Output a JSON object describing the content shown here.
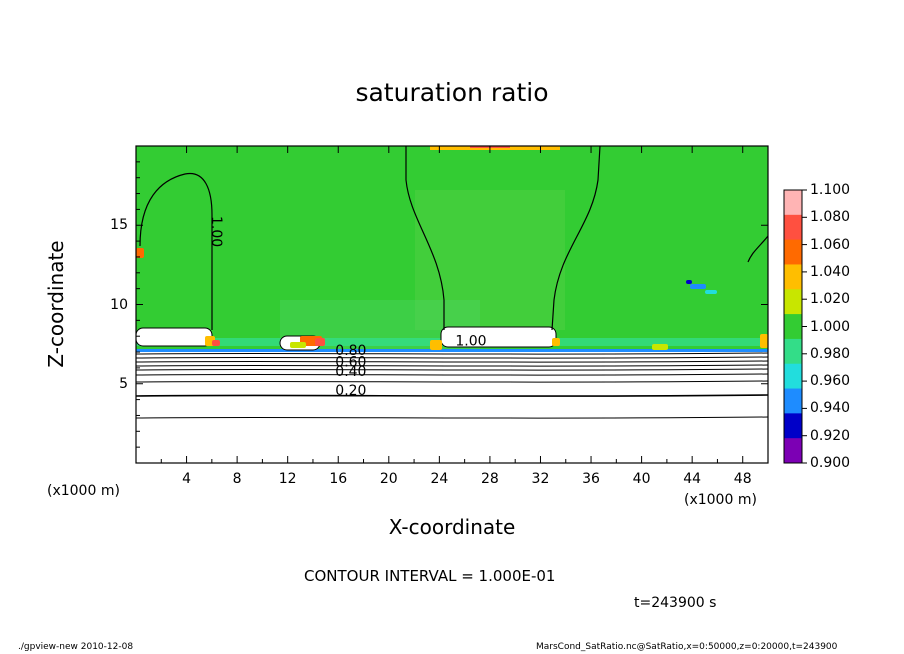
{
  "chart_data": {
    "type": "heatmap",
    "title": "saturation ratio",
    "xlabel": "X-coordinate",
    "ylabel": "Z-coordinate",
    "x_unit": "(x1000 m)",
    "x_ticks": [
      "4",
      "8",
      "12",
      "16",
      "20",
      "24",
      "28",
      "32",
      "36",
      "40",
      "44",
      "48"
    ],
    "x_tick_values": [
      4,
      8,
      12,
      16,
      20,
      24,
      28,
      32,
      36,
      40,
      44,
      48
    ],
    "xlim": [
      0,
      50
    ],
    "y_ticks": [
      "5",
      "10",
      "15"
    ],
    "y_tick_values": [
      5,
      10,
      15
    ],
    "ylim": [
      0,
      20
    ],
    "colorbar": {
      "levels": [
        "1.100",
        "1.080",
        "1.060",
        "1.040",
        "1.020",
        "1.000",
        "0.980",
        "0.960",
        "0.940",
        "0.920",
        "0.900"
      ],
      "colors": [
        "#ffb4b4",
        "#ff5040",
        "#ff6a00",
        "#ffbe00",
        "#c8e600",
        "#33cc33",
        "#33dd88",
        "#22dddd",
        "#1e8cff",
        "#0000c8",
        "#7c00b4"
      ],
      "range": [
        0.9,
        1.1
      ],
      "background_fill": "#33cc33"
    },
    "contour_labels": [
      {
        "text": "1.00",
        "x": 6.0,
        "y": 14.6
      },
      {
        "text": "1.00",
        "x": 26.5,
        "y": 7.4
      },
      {
        "text": "0.80",
        "x": 17.0,
        "y": 6.8
      },
      {
        "text": "0.60",
        "x": 17.0,
        "y": 6.1
      },
      {
        "text": "0.40",
        "x": 17.0,
        "y": 5.5
      },
      {
        "text": "0.20",
        "x": 17.0,
        "y": 4.3
      }
    ],
    "contour_levels_below": [
      0.9,
      0.8,
      0.7,
      0.6,
      0.5,
      0.4,
      0.3,
      0.2,
      0.1
    ]
  },
  "annotations": {
    "contour_interval": "CONTOUR INTERVAL = 1.000E-01",
    "time": "t=243900 s",
    "footer_left": "./gpview-new   2010-12-08",
    "footer_right": "MarsCond_SatRatio.nc@SatRatio,x=0:50000,z=0:20000,t=243900"
  }
}
